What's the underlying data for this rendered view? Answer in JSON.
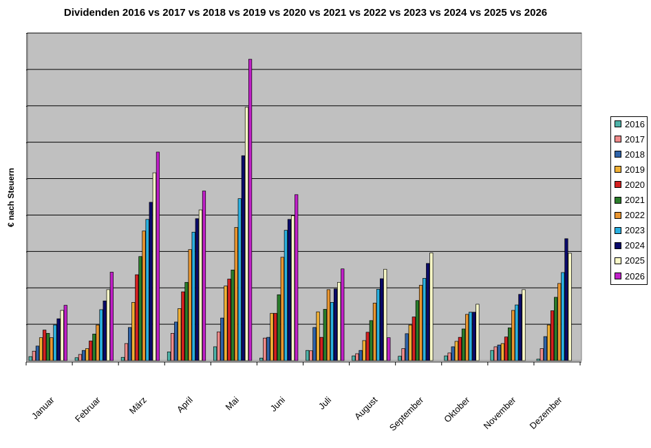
{
  "chart_data": {
    "type": "bar",
    "title": "Dividenden 2016 vs 2017 vs 2018 vs 2019 vs 2020 vs 2021 vs 2022 vs 2023 vs 2024 vs 2025 vs 2026",
    "xlabel": "",
    "ylabel": "€ nach Steuern",
    "ylim": [
      0,
      9
    ],
    "grid": true,
    "legend_position": "right",
    "categories": [
      "Januar",
      "Februar",
      "März",
      "April",
      "Mai",
      "Juni",
      "Juli",
      "August",
      "September",
      "Oktober",
      "November",
      "Dezember"
    ],
    "series": [
      {
        "name": "2016",
        "color": "#4fb3a9",
        "values": [
          0.11,
          0.08,
          0.09,
          0.24,
          0.38,
          0.07,
          0.28,
          0.13,
          0.12,
          0.13,
          0.28,
          0.04
        ]
      },
      {
        "name": "2017",
        "color": "#ee8a8a",
        "values": [
          0.26,
          0.17,
          0.47,
          0.75,
          0.79,
          0.62,
          0.27,
          0.19,
          0.33,
          0.21,
          0.38,
          0.33
        ]
      },
      {
        "name": "2018",
        "color": "#2f63a8",
        "values": [
          0.4,
          0.28,
          0.91,
          1.06,
          1.17,
          0.64,
          0.91,
          0.28,
          0.74,
          0.38,
          0.43,
          0.66
        ]
      },
      {
        "name": "2019",
        "color": "#f0b035",
        "values": [
          0.63,
          0.33,
          1.6,
          1.43,
          2.05,
          1.3,
          1.34,
          0.55,
          0.98,
          0.53,
          0.47,
          0.98
        ]
      },
      {
        "name": "2020",
        "color": "#d42020",
        "values": [
          0.84,
          0.54,
          2.36,
          1.89,
          2.24,
          1.3,
          0.64,
          0.78,
          1.2,
          0.64,
          0.65,
          1.37
        ]
      },
      {
        "name": "2021",
        "color": "#2a7d2a",
        "values": [
          0.75,
          0.73,
          2.86,
          2.15,
          2.49,
          1.81,
          1.41,
          1.1,
          1.65,
          0.87,
          0.9,
          1.74
        ]
      },
      {
        "name": "2022",
        "color": "#e89530",
        "values": [
          0.63,
          0.98,
          3.56,
          3.05,
          3.66,
          2.84,
          1.95,
          1.58,
          2.07,
          1.27,
          1.38,
          2.12
        ]
      },
      {
        "name": "2023",
        "color": "#2ab0e0",
        "values": [
          0.98,
          1.4,
          3.88,
          3.53,
          4.45,
          3.58,
          1.6,
          1.96,
          2.26,
          1.33,
          1.53,
          2.42
        ]
      },
      {
        "name": "2024",
        "color": "#0a0a6a",
        "values": [
          1.15,
          1.64,
          4.35,
          3.9,
          5.63,
          3.88,
          1.97,
          2.25,
          2.67,
          1.33,
          1.82,
          3.35
        ]
      },
      {
        "name": "2025",
        "color": "#fafac8",
        "values": [
          1.38,
          1.95,
          5.16,
          4.14,
          6.96,
          3.98,
          2.15,
          2.51,
          2.96,
          1.55,
          1.95,
          2.95
        ]
      },
      {
        "name": "2026",
        "color": "#c020c8",
        "values": [
          1.52,
          2.43,
          5.73,
          4.66,
          8.28,
          4.56,
          2.52,
          0.63,
          0,
          0,
          0,
          0
        ]
      }
    ]
  }
}
